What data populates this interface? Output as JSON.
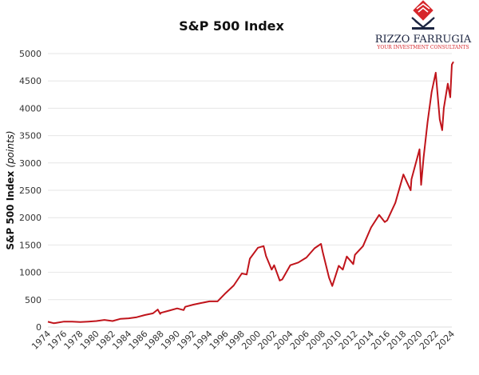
{
  "logo": {
    "name": "RIZZO FARRUGIA",
    "tagline": "YOUR INVESTMENT CONSULTANTS"
  },
  "chart_data": {
    "type": "line",
    "title": "S&P 500 Index",
    "ylabel": "S&P 500 Index",
    "ylabel_unit": "(points)",
    "xlabel": "",
    "xlim": [
      1974,
      2024
    ],
    "ylim": [
      0,
      5000
    ],
    "yticks": [
      0,
      500,
      1000,
      1500,
      2000,
      2500,
      3000,
      3500,
      4000,
      4500,
      5000
    ],
    "xticks": [
      1974,
      1976,
      1978,
      1980,
      1982,
      1984,
      1986,
      1988,
      1990,
      1992,
      1994,
      1996,
      1998,
      2000,
      2002,
      2004,
      2006,
      2008,
      2010,
      2012,
      2014,
      2016,
      2018,
      2020,
      2022,
      2024
    ],
    "grid": "horizontal",
    "line_color": "#c0141b",
    "series": [
      {
        "x": [
          1974,
          1974.7,
          1975,
          1976,
          1977,
          1978,
          1979,
          1980,
          1981,
          1982,
          1983,
          1984,
          1985,
          1986,
          1987,
          1987.6,
          1987.9,
          1988,
          1989,
          1990,
          1990.8,
          1991,
          1992,
          1993,
          1994,
          1995,
          1996,
          1997,
          1998,
          1998.6,
          1999,
          2000,
          2000.7,
          2001,
          2001.7,
          2002,
          2002.7,
          2003,
          2004,
          2005,
          2006,
          2007,
          2007.8,
          2008,
          2008.8,
          2009.2,
          2010,
          2010.5,
          2011,
          2011.8,
          2012,
          2013,
          2014,
          2015,
          2015.7,
          2016,
          2017,
          2018,
          2018.9,
          2019,
          2020,
          2020.2,
          2020.5,
          2021,
          2021.5,
          2022,
          2022.5,
          2022.8,
          2023,
          2023.5,
          2023.8,
          2024,
          2024.2
        ],
        "values": [
          97,
          70,
          75,
          100,
          100,
          90,
          100,
          110,
          130,
          110,
          150,
          160,
          180,
          220,
          250,
          320,
          240,
          260,
          300,
          340,
          310,
          370,
          410,
          440,
          470,
          470,
          620,
          760,
          980,
          960,
          1250,
          1450,
          1480,
          1300,
          1050,
          1130,
          850,
          870,
          1130,
          1180,
          1270,
          1440,
          1520,
          1380,
          900,
          750,
          1120,
          1050,
          1290,
          1150,
          1320,
          1480,
          1820,
          2050,
          1920,
          1950,
          2270,
          2790,
          2500,
          2700,
          3250,
          2600,
          3100,
          3750,
          4300,
          4650,
          3800,
          3600,
          4000,
          4450,
          4200,
          4800,
          4850
        ]
      }
    ]
  }
}
